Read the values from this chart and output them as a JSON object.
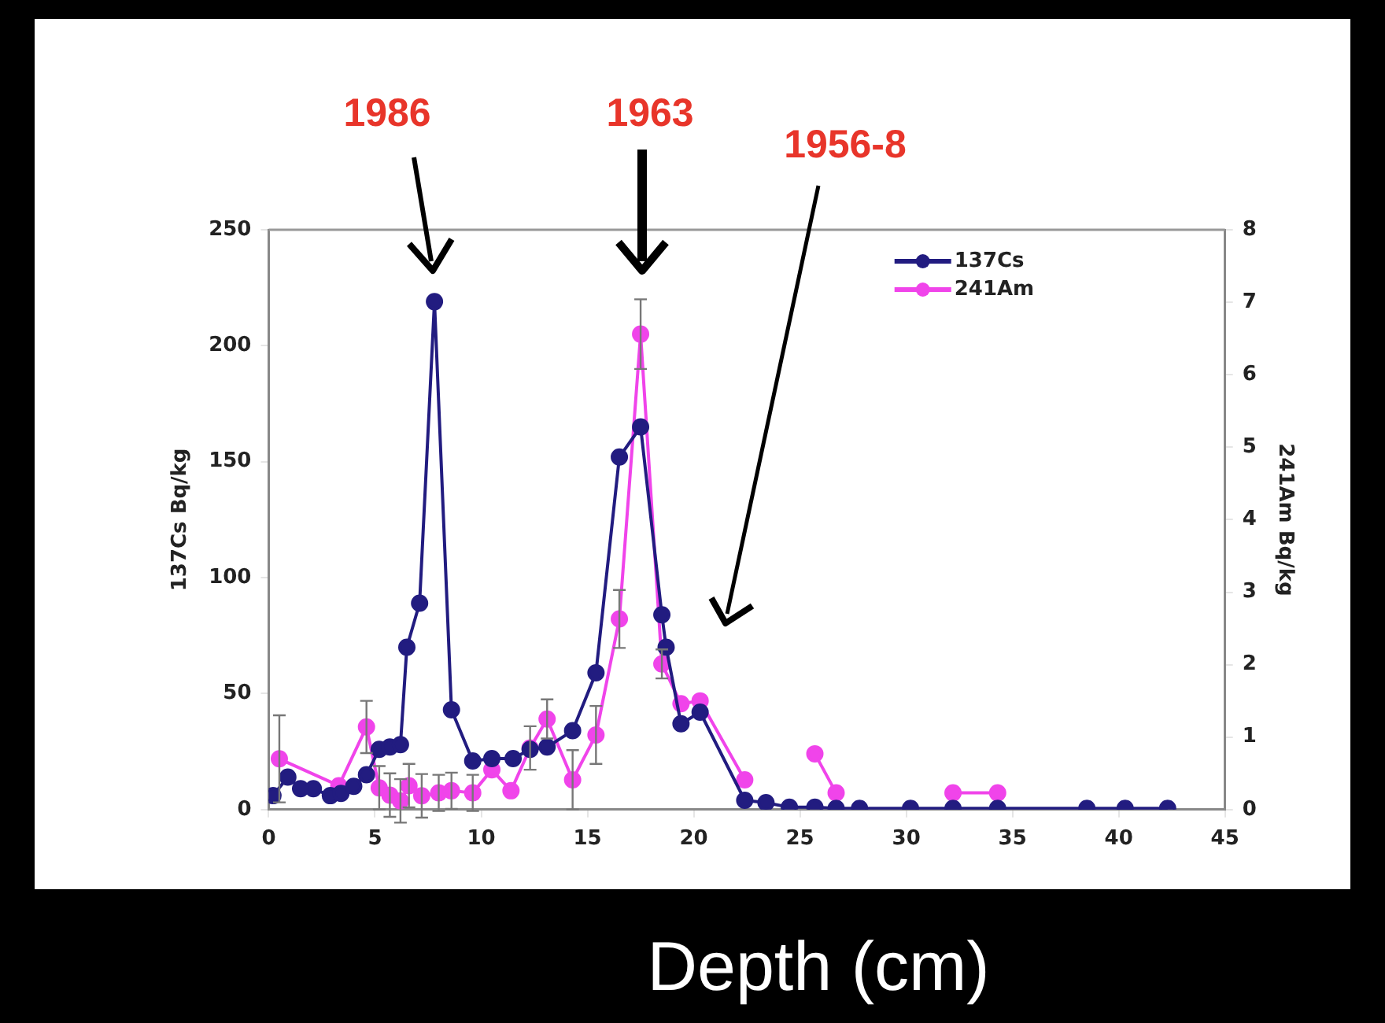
{
  "chart_data": {
    "type": "line",
    "xlabel": "Depth (cm)",
    "ylabel": "137Cs Bq/kg",
    "y2label": "241Am Bq/kg",
    "xlim": [
      0,
      45
    ],
    "xticks": [
      0,
      5,
      10,
      15,
      20,
      25,
      30,
      35,
      40,
      45
    ],
    "ylim": [
      0,
      250
    ],
    "yticks": [
      0,
      50,
      100,
      150,
      200,
      250
    ],
    "y2lim": [
      0,
      8
    ],
    "y2ticks": [
      0,
      1,
      2,
      3,
      4,
      5,
      6,
      7,
      8
    ],
    "marker": "circle",
    "grid": false,
    "legend": "top right",
    "series": [
      {
        "name": "137Cs",
        "color": "#221c80",
        "x": [
          0.2,
          0.9,
          1.5,
          2.1,
          2.9,
          3.4,
          4.0,
          4.6,
          5.2,
          5.7,
          6.2,
          6.5,
          7.1,
          7.8,
          8.6,
          9.6,
          10.5,
          11.5,
          12.3,
          13.1,
          14.3,
          15.4,
          16.5,
          17.5,
          18.5,
          18.7,
          19.4,
          20.3,
          22.4,
          23.4,
          24.5,
          25.7,
          26.7,
          27.8,
          30.2,
          32.2,
          34.3,
          38.5,
          40.3,
          42.3
        ],
        "values": [
          6,
          14,
          9,
          9,
          6,
          7,
          10,
          15,
          26,
          27,
          28,
          70,
          89,
          219,
          43,
          21,
          22,
          22,
          26,
          27,
          34,
          59,
          152,
          165,
          84,
          70,
          37,
          42,
          4,
          3,
          1,
          1,
          0.5,
          0.5,
          0.5,
          0.5,
          0.5,
          0.5,
          0.5,
          0.5
        ]
      },
      {
        "name": "241Am",
        "color": "#f044ea",
        "axis": "y2",
        "x": [
          0.5,
          3.3,
          4.6,
          5.2,
          5.7,
          6.2,
          6.6,
          7.2,
          8.0,
          8.6,
          9.6,
          10.5,
          11.4,
          12.3,
          13.1,
          14.3,
          15.4,
          16.5,
          17.5,
          18.5,
          19.4,
          20.3,
          22.4,
          24.0,
          25.7,
          26.7,
          29.5,
          32.2,
          34.3
        ],
        "values": [
          0.7,
          0.33,
          1.14,
          0.3,
          0.2,
          0.12,
          0.33,
          0.19,
          0.23,
          0.26,
          0.23,
          0.55,
          0.26,
          0.85,
          1.25,
          0.41,
          1.03,
          2.63,
          6.56,
          2.01,
          1.46,
          1.5,
          0.41,
          null,
          0.77,
          0.23,
          null,
          0.23,
          0.23
        ],
        "errors": [
          0.6,
          null,
          0.36,
          0.3,
          0.3,
          0.3,
          0.3,
          0.3,
          0.25,
          0.25,
          0.25,
          null,
          null,
          0.3,
          0.27,
          0.41,
          0.4,
          0.4,
          0.48,
          0.2,
          null,
          null,
          null,
          null,
          null,
          null,
          null,
          null,
          null
        ]
      }
    ],
    "annotations": [
      "1986",
      "1963",
      "1956-8"
    ]
  }
}
